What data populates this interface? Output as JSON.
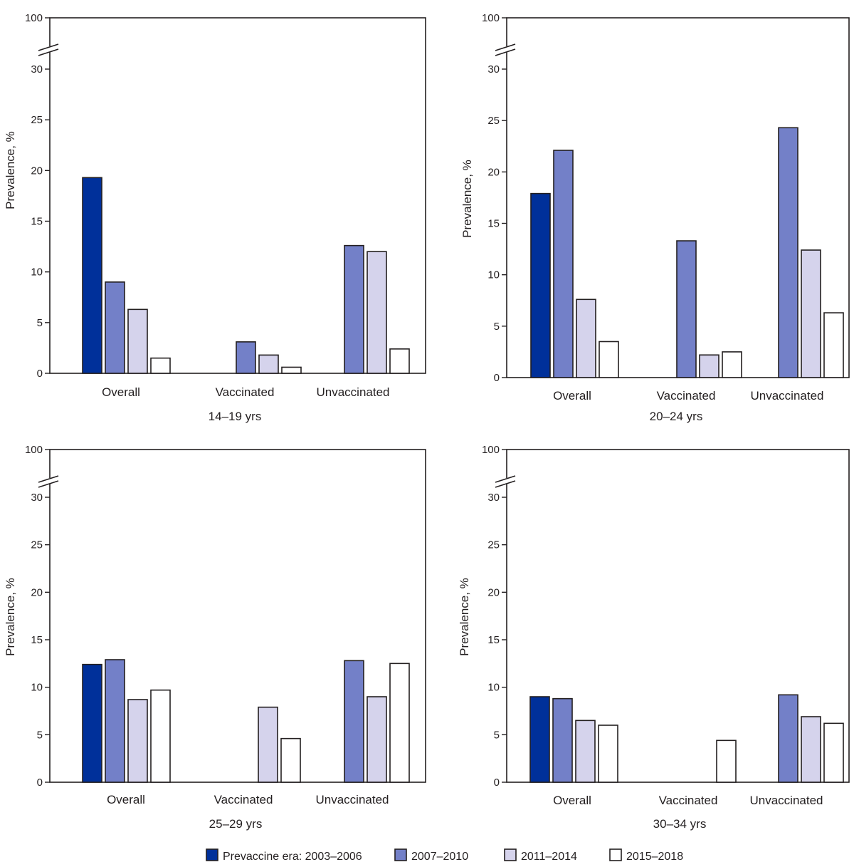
{
  "colors": {
    "series": [
      "#00309a",
      "#7380c8",
      "#d5d3ec",
      "#ffffff"
    ],
    "stroke": "#231f20"
  },
  "y_axis": {
    "label": "Prevalence, %",
    "ticks": [
      "0",
      "5",
      "10",
      "15",
      "20",
      "25",
      "30"
    ],
    "break_top_label": "100"
  },
  "legend": [
    {
      "label": "Prevaccine era: 2003–2006"
    },
    {
      "label": "2007–2010"
    },
    {
      "label": "2011–2014"
    },
    {
      "label": "2015–2018"
    }
  ],
  "chart_data": [
    {
      "type": "bar",
      "title": "14–19 yrs",
      "xlabel": "14–19 yrs",
      "ylabel": "Prevalence, %",
      "ylim": [
        0,
        100
      ],
      "axis_break": [
        30,
        100
      ],
      "categories": [
        "Overall",
        "Vaccinated",
        "Unvaccinated"
      ],
      "series": [
        {
          "name": "Prevaccine era: 2003–2006",
          "values": [
            19.3,
            null,
            null
          ]
        },
        {
          "name": "2007–2010",
          "values": [
            9.0,
            3.1,
            12.6
          ]
        },
        {
          "name": "2011–2014",
          "values": [
            6.3,
            1.8,
            12.0
          ]
        },
        {
          "name": "2015–2018",
          "values": [
            1.5,
            0.6,
            2.4
          ]
        }
      ]
    },
    {
      "type": "bar",
      "title": "20–24 yrs",
      "xlabel": "20–24 yrs",
      "ylabel": "Prevalence, %",
      "ylim": [
        0,
        100
      ],
      "axis_break": [
        30,
        100
      ],
      "categories": [
        "Overall",
        "Vaccinated",
        "Unvaccinated"
      ],
      "series": [
        {
          "name": "Prevaccine era: 2003–2006",
          "values": [
            17.9,
            null,
            null
          ]
        },
        {
          "name": "2007–2010",
          "values": [
            22.1,
            13.3,
            24.3
          ]
        },
        {
          "name": "2011–2014",
          "values": [
            7.6,
            2.2,
            12.4
          ]
        },
        {
          "name": "2015–2018",
          "values": [
            3.5,
            2.5,
            6.3
          ]
        }
      ]
    },
    {
      "type": "bar",
      "title": "25–29 yrs",
      "xlabel": "25–29 yrs",
      "ylabel": "Prevalence, %",
      "ylim": [
        0,
        100
      ],
      "axis_break": [
        30,
        100
      ],
      "categories": [
        "Overall",
        "Vaccinated",
        "Unvaccinated"
      ],
      "series": [
        {
          "name": "Prevaccine era: 2003–2006",
          "values": [
            12.4,
            null,
            null
          ]
        },
        {
          "name": "2007–2010",
          "values": [
            12.9,
            null,
            12.8
          ]
        },
        {
          "name": "2011–2014",
          "values": [
            8.7,
            7.9,
            9.0
          ]
        },
        {
          "name": "2015–2018",
          "values": [
            9.7,
            4.6,
            12.5
          ]
        }
      ]
    },
    {
      "type": "bar",
      "title": "30–34 yrs",
      "xlabel": "30–34 yrs",
      "ylabel": "Prevalence, %",
      "ylim": [
        0,
        100
      ],
      "axis_break": [
        30,
        100
      ],
      "categories": [
        "Overall",
        "Vaccinated",
        "Unvaccinated"
      ],
      "series": [
        {
          "name": "Prevaccine era: 2003–2006",
          "values": [
            9.0,
            null,
            null
          ]
        },
        {
          "name": "2007–2010",
          "values": [
            8.8,
            null,
            9.2
          ]
        },
        {
          "name": "2011–2014",
          "values": [
            6.5,
            null,
            6.9
          ]
        },
        {
          "name": "2015–2018",
          "values": [
            6.0,
            4.4,
            6.2
          ]
        }
      ]
    }
  ]
}
